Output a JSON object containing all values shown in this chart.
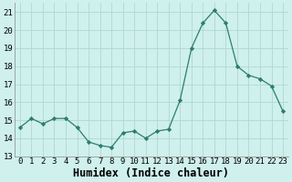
{
  "x": [
    0,
    1,
    2,
    3,
    4,
    5,
    6,
    7,
    8,
    9,
    10,
    11,
    12,
    13,
    14,
    15,
    16,
    17,
    18,
    19,
    20,
    21,
    22,
    23
  ],
  "y": [
    14.6,
    15.1,
    14.8,
    15.1,
    15.1,
    14.6,
    13.8,
    13.6,
    13.5,
    14.3,
    14.4,
    14.0,
    14.4,
    14.5,
    16.1,
    19.0,
    20.4,
    21.1,
    20.4,
    18.0,
    17.5,
    17.3,
    16.9,
    15.5
  ],
  "line_color": "#2d7d6e",
  "marker": "D",
  "marker_size": 2.2,
  "bg_color": "#cff0ec",
  "grid_color": "#b0d8d3",
  "xlabel": "Humidex (Indice chaleur)",
  "ylim": [
    13,
    21.5
  ],
  "xlim": [
    -0.5,
    23.5
  ],
  "yticks": [
    13,
    14,
    15,
    16,
    17,
    18,
    19,
    20,
    21
  ],
  "xticks": [
    0,
    1,
    2,
    3,
    4,
    5,
    6,
    7,
    8,
    9,
    10,
    11,
    12,
    13,
    14,
    15,
    16,
    17,
    18,
    19,
    20,
    21,
    22,
    23
  ],
  "tick_fontsize": 6.5,
  "label_fontsize": 8.5
}
